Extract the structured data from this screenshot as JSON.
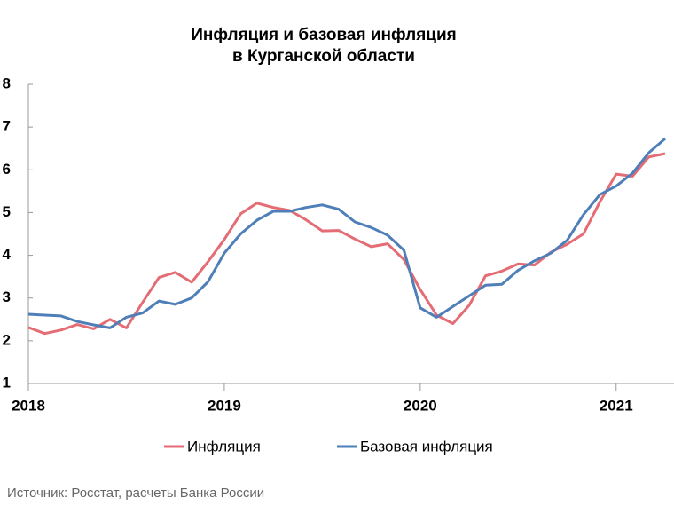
{
  "chart_data": {
    "type": "line",
    "title": [
      "Инфляция и базовая инфляция",
      "в  Курганской области"
    ],
    "source": "Источник: Росстат, расчеты Банка России",
    "categories": [
      "2018",
      null,
      null,
      null,
      null,
      null,
      null,
      null,
      null,
      null,
      null,
      null,
      "2019",
      null,
      null,
      null,
      null,
      null,
      null,
      null,
      null,
      null,
      null,
      null,
      "2020",
      null,
      null,
      null,
      null,
      null,
      null,
      null,
      null,
      null,
      null,
      null,
      "2021",
      null,
      null,
      null
    ],
    "series": [
      {
        "name": "Инфляция",
        "color": "#e46c75",
        "values": [
          2.31,
          2.17,
          2.25,
          2.38,
          2.28,
          2.5,
          2.3,
          2.9,
          3.48,
          3.6,
          3.37,
          3.85,
          4.37,
          4.97,
          5.22,
          5.12,
          5.05,
          4.83,
          4.57,
          4.58,
          4.38,
          4.2,
          4.27,
          3.9,
          3.2,
          2.6,
          2.4,
          2.83,
          3.52,
          3.63,
          3.8,
          3.77,
          4.07,
          4.26,
          4.5,
          5.25,
          5.9,
          5.85,
          6.3,
          6.38
        ]
      },
      {
        "name": "Базовая инфляция",
        "color": "#4f7fb8",
        "values": [
          2.62,
          2.6,
          2.58,
          2.45,
          2.37,
          2.3,
          2.55,
          2.65,
          2.93,
          2.85,
          3.0,
          3.38,
          4.05,
          4.5,
          4.82,
          5.03,
          5.03,
          5.12,
          5.18,
          5.08,
          4.78,
          4.65,
          4.47,
          4.12,
          2.77,
          2.55,
          2.8,
          3.05,
          3.3,
          3.32,
          3.65,
          3.87,
          4.05,
          4.35,
          4.95,
          5.42,
          5.62,
          5.92,
          6.4,
          6.73
        ]
      }
    ],
    "ylim": [
      1,
      8
    ],
    "yticks": [
      1,
      2,
      3,
      4,
      5,
      6,
      7,
      8
    ],
    "grid": false,
    "legend": "bottom"
  }
}
